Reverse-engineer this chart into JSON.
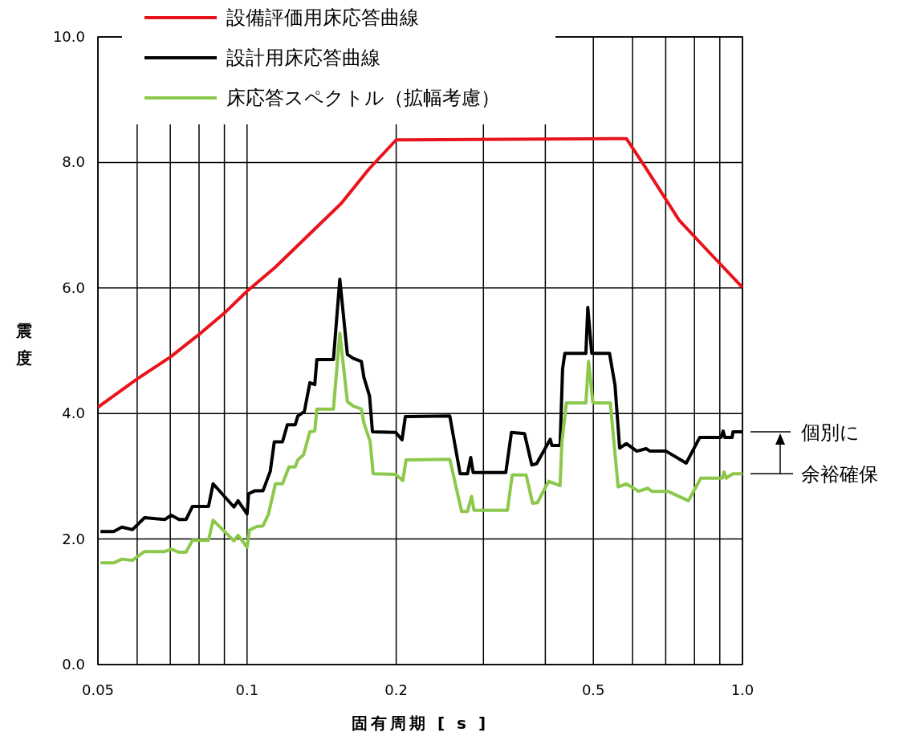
{
  "chart_data": {
    "type": "line",
    "xlabel": "固有周期 [ s ]",
    "ylabel": "震度",
    "log": "x",
    "xlim": [
      0.05,
      1.0
    ],
    "ylim": [
      0,
      10
    ],
    "xticks": [
      0.05,
      {
        "value": 0.06,
        "label": null
      },
      {
        "value": 0.07,
        "label": null
      },
      {
        "value": 0.08,
        "label": null
      },
      {
        "value": 0.09,
        "label": null
      },
      0.1,
      0.2,
      {
        "value": 0.3,
        "label": null
      },
      {
        "value": 0.4,
        "label": null
      },
      0.5,
      {
        "value": 0.6,
        "label": null
      },
      {
        "value": 0.7,
        "label": null
      },
      {
        "value": 0.8,
        "label": null
      },
      {
        "value": 0.9,
        "label": null
      },
      {
        "value": 1.0,
        "label": "1.0"
      }
    ],
    "yticks": [
      {
        "value": 0,
        "label": "0.0"
      },
      {
        "value": 2,
        "label": "2.0"
      },
      {
        "value": 4,
        "label": "4.0"
      },
      {
        "value": 6,
        "label": "6.0"
      },
      {
        "value": 8,
        "label": "8.0"
      },
      {
        "value": 10,
        "label": "10.0"
      }
    ],
    "grid": true,
    "legend": "top",
    "line_style": "solid",
    "annotations": [
      "個別に",
      "余裕確保"
    ],
    "series": [
      {
        "name": "設備評価用床応答曲線",
        "color": "#e8141b",
        "x": [
          0.05,
          0.06,
          0.07,
          0.08,
          0.09,
          0.1,
          0.114,
          0.155,
          0.176,
          0.2,
          0.583,
          0.636,
          0.745,
          0.84,
          1.0
        ],
        "values": [
          4.1,
          4.55,
          4.9,
          5.26,
          5.6,
          5.95,
          6.33,
          7.35,
          7.89,
          8.36,
          8.38,
          7.93,
          7.08,
          6.64,
          6.01
        ]
      },
      {
        "name": "設計用床応答曲線",
        "color": "#000000",
        "x": [
          0.0506,
          0.0538,
          0.0559,
          0.0587,
          0.0621,
          0.0682,
          0.0703,
          0.0729,
          0.0753,
          0.0776,
          0.0836,
          0.0854,
          0.0941,
          0.0959,
          0.1,
          0.1007,
          0.1038,
          0.1077,
          0.1114,
          0.1135,
          0.1179,
          0.1206,
          0.1251,
          0.1266,
          0.1305,
          0.1339,
          0.137,
          0.1383,
          0.1494,
          0.1539,
          0.1594,
          0.1637,
          0.1701,
          0.1721,
          0.1767,
          0.1791,
          0.1995,
          0.2055,
          0.2087,
          0.2566,
          0.2692,
          0.2786,
          0.2828,
          0.286,
          0.3329,
          0.3417,
          0.3631,
          0.3756,
          0.3841,
          0.4047,
          0.4093,
          0.4124,
          0.4284,
          0.4334,
          0.438,
          0.483,
          0.4873,
          0.4963,
          0.539,
          0.553,
          0.565,
          0.583,
          0.612,
          0.639,
          0.651,
          0.701,
          0.77,
          0.82,
          0.905,
          0.914,
          0.921,
          0.953,
          0.957,
          1.0
        ],
        "values": [
          2.12,
          2.12,
          2.19,
          2.15,
          2.34,
          2.31,
          2.38,
          2.31,
          2.31,
          2.52,
          2.52,
          2.88,
          2.51,
          2.61,
          2.4,
          2.72,
          2.77,
          2.77,
          3.08,
          3.55,
          3.55,
          3.82,
          3.82,
          3.96,
          4.03,
          4.49,
          4.46,
          4.86,
          4.86,
          6.14,
          4.94,
          4.88,
          4.83,
          4.58,
          4.28,
          3.71,
          3.7,
          3.58,
          3.95,
          3.96,
          3.04,
          3.04,
          3.3,
          3.06,
          3.06,
          3.7,
          3.68,
          3.18,
          3.2,
          3.52,
          3.59,
          3.49,
          3.49,
          4.71,
          4.96,
          4.96,
          5.69,
          4.96,
          4.96,
          4.45,
          3.45,
          3.52,
          3.4,
          3.44,
          3.4,
          3.4,
          3.21,
          3.62,
          3.62,
          3.72,
          3.62,
          3.62,
          3.71,
          3.71
        ]
      },
      {
        "name": "床応答スペクトル（拡幅考慮）",
        "color": "#8cc84b",
        "x": [
          0.0506,
          0.0538,
          0.0559,
          0.0587,
          0.0621,
          0.0682,
          0.0703,
          0.0729,
          0.0753,
          0.0776,
          0.0836,
          0.0854,
          0.0941,
          0.0959,
          0.1,
          0.1011,
          0.1046,
          0.1077,
          0.1105,
          0.1141,
          0.1179,
          0.1215,
          0.1251,
          0.1266,
          0.13,
          0.1339,
          0.137,
          0.1383,
          0.1494,
          0.1539,
          0.1594,
          0.1637,
          0.1701,
          0.1721,
          0.1772,
          0.1797,
          0.1995,
          0.2062,
          0.2094,
          0.2566,
          0.2711,
          0.2786,
          0.2839,
          0.2871,
          0.3354,
          0.343,
          0.3659,
          0.377,
          0.3856,
          0.4062,
          0.4284,
          0.4318,
          0.441,
          0.483,
          0.489,
          0.499,
          0.541,
          0.561,
          0.583,
          0.617,
          0.644,
          0.656,
          0.707,
          0.778,
          0.824,
          0.911,
          0.918,
          0.927,
          0.957,
          1.0
        ],
        "values": [
          1.62,
          1.62,
          1.68,
          1.66,
          1.8,
          1.8,
          1.84,
          1.79,
          1.79,
          1.98,
          1.98,
          2.3,
          1.97,
          2.06,
          1.87,
          2.14,
          2.2,
          2.21,
          2.4,
          2.88,
          2.88,
          3.15,
          3.15,
          3.26,
          3.34,
          3.71,
          3.72,
          4.07,
          4.07,
          5.28,
          4.19,
          4.12,
          4.07,
          3.85,
          3.55,
          3.04,
          3.03,
          2.93,
          3.26,
          3.27,
          2.44,
          2.44,
          2.68,
          2.46,
          2.46,
          3.02,
          3.02,
          2.57,
          2.58,
          2.92,
          2.85,
          3.52,
          4.17,
          4.17,
          4.83,
          4.17,
          4.17,
          2.83,
          2.88,
          2.76,
          2.81,
          2.76,
          2.76,
          2.61,
          2.97,
          2.97,
          3.07,
          2.97,
          3.04,
          3.04
        ]
      }
    ]
  }
}
